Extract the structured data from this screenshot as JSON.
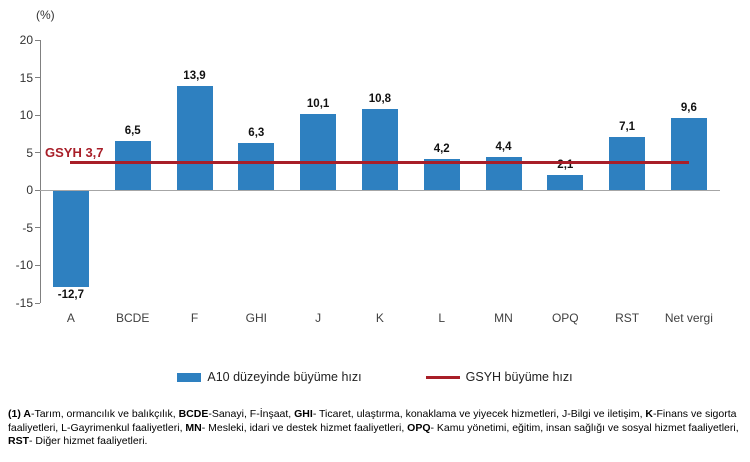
{
  "chart_data": {
    "type": "bar",
    "unit_label": "(%)",
    "categories": [
      "A",
      "BCDE",
      "F",
      "GHI",
      "J",
      "K",
      "L",
      "MN",
      "OPQ",
      "RST",
      "Net vergi"
    ],
    "values": [
      -12.7,
      6.5,
      13.9,
      6.3,
      10.1,
      10.8,
      4.2,
      4.4,
      2.1,
      7.1,
      9.6
    ],
    "value_labels": [
      "-12,7",
      "6,5",
      "13,9",
      "6,3",
      "10,1",
      "10,8",
      "4,2",
      "4,4",
      "2,1",
      "7,1",
      "9,6"
    ],
    "ylim": [
      -15,
      20
    ],
    "yticks": [
      20,
      15,
      10,
      5,
      0,
      -5,
      -10,
      -15
    ],
    "grid": false,
    "bar_color": "#2E80C0",
    "reference_line": {
      "value": 3.7,
      "label": "GSYH 3,7",
      "color": "#A81E28"
    },
    "legend": [
      {
        "label": "A10 düzeyinde büyüme hızı",
        "type": "bar",
        "color": "#2E80C0"
      },
      {
        "label": "GSYH büyüme hızı",
        "type": "line",
        "color": "#A81E28"
      }
    ],
    "legend_position": "bottom"
  },
  "footnote": {
    "segments": [
      {
        "text": "(1) A",
        "bold": true
      },
      {
        "text": "-Tarım, ormancılık ve balıkçılık, ",
        "bold": false
      },
      {
        "text": "BCDE",
        "bold": true
      },
      {
        "text": "-Sanayi, F-İnşaat, ",
        "bold": false
      },
      {
        "text": "GHI",
        "bold": true
      },
      {
        "text": "- Ticaret, ulaştırma, konaklama ve yiyecek hizmetleri, J-Bilgi ve iletişim, ",
        "bold": false
      },
      {
        "text": "K",
        "bold": true
      },
      {
        "text": "-Finans ve sigorta faaliyetleri, L-Gayrimenkul faaliyetleri, ",
        "bold": false
      },
      {
        "text": "MN",
        "bold": true
      },
      {
        "text": "- Mesleki, idari ve destek hizmet faaliyetleri, ",
        "bold": false
      },
      {
        "text": "OPQ",
        "bold": true
      },
      {
        "text": "- Kamu yönetimi, eğitim, insan sağlığı ve sosyal hizmet faaliyetleri, ",
        "bold": false
      },
      {
        "text": "RST",
        "bold": true
      },
      {
        "text": "- Diğer hizmet faaliyetleri.",
        "bold": false
      }
    ]
  }
}
